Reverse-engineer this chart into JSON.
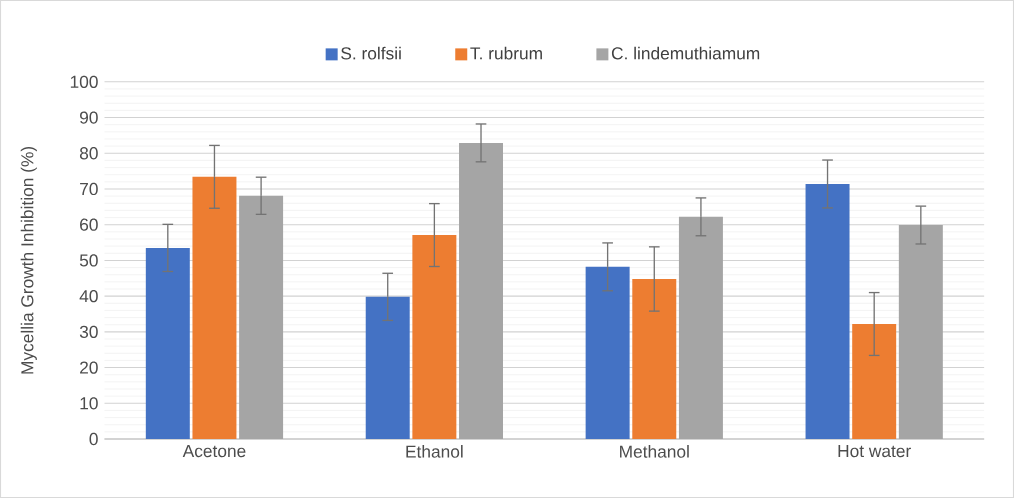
{
  "chart_data": {
    "type": "bar",
    "ylabel": "Mycellia Growth Inhibition (%)",
    "categories": [
      "Acetone",
      "Ethanol",
      "Methanol",
      "Hot water"
    ],
    "series": [
      {
        "name": "S. rolfsii",
        "color": "#4472c4",
        "values": [
          53.5,
          39.8,
          48.2,
          71.4
        ],
        "errors": [
          6.6,
          6.6,
          6.7,
          6.7
        ]
      },
      {
        "name": "T. rubrum",
        "color": "#ed7d31",
        "values": [
          73.4,
          57.1,
          44.8,
          32.2
        ],
        "errors": [
          8.8,
          8.8,
          9.0,
          8.8
        ]
      },
      {
        "name": "C. lindemuthiamum",
        "color": "#a5a5a5",
        "values": [
          68.1,
          82.9,
          62.2,
          59.9
        ],
        "errors": [
          5.2,
          5.3,
          5.3,
          5.3
        ]
      }
    ],
    "ylim": [
      0,
      100
    ],
    "yticks": [
      0,
      10,
      20,
      30,
      40,
      50,
      60,
      70,
      80,
      90,
      100
    ],
    "grid": "y",
    "legend": "top"
  }
}
